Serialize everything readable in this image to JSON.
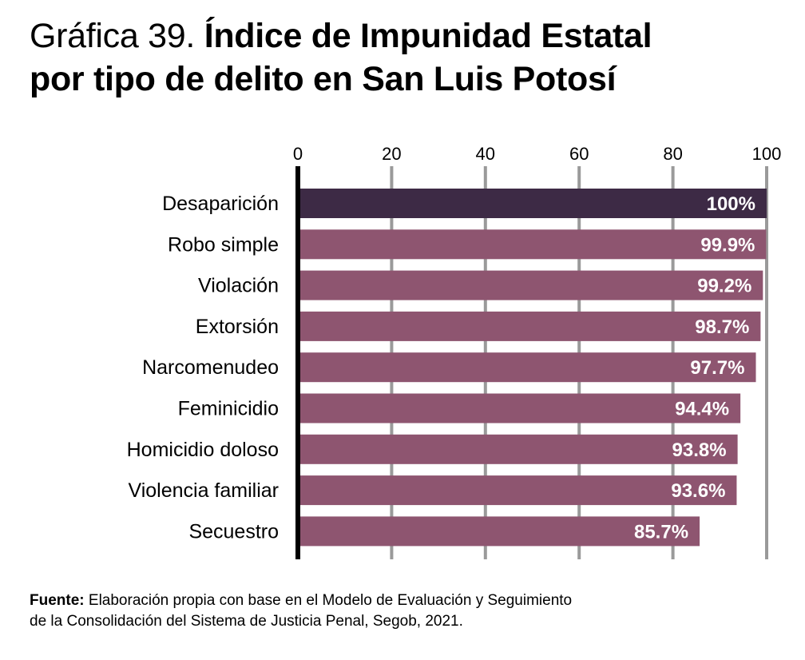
{
  "header": {
    "title_prefix": "Gráfica 39.",
    "title_line1": "Índice de Impunidad Estatal",
    "title_line2": "por tipo de delito en San Luis Potosí"
  },
  "source": {
    "label": "Fuente:",
    "text": "Elaboración propia con base en el Modelo de Evaluación y Seguimiento",
    "text2": "de la Consolidación del Sistema de Justicia Penal, Segob, 2021."
  },
  "chart_data": {
    "type": "bar",
    "orientation": "horizontal",
    "title": "Gráfica 39. Índice de Impunidad Estatal por tipo de delito en San Luis Potosí",
    "xlabel": "",
    "ylabel": "",
    "xlim": [
      0,
      100
    ],
    "xticks": [
      0,
      20,
      40,
      60,
      80,
      100
    ],
    "xtick_labels": [
      "0",
      "20",
      "40",
      "60",
      "80",
      "100"
    ],
    "tick_position": "top",
    "grid": true,
    "categories": [
      "Desaparición",
      "Robo simple",
      "Violación",
      "Extorsión",
      "Narcomenudeo",
      "Feminicidio",
      "Homicidio doloso",
      "Violencia familiar",
      "Secuestro"
    ],
    "values": [
      100,
      99.9,
      99.2,
      98.7,
      97.7,
      94.4,
      93.8,
      93.6,
      85.7
    ],
    "data_labels": [
      "100%",
      "99.9%",
      "99.2%",
      "98.7%",
      "97.7%",
      "94.4%",
      "93.8%",
      "93.6%",
      "85.7%"
    ],
    "colors": {
      "highlight": "#3d2a45",
      "default": "#8e5570",
      "grid": "#9a9a9a",
      "axis": "#000000",
      "label_text": "#ffffff"
    },
    "highlight_index": 0
  }
}
